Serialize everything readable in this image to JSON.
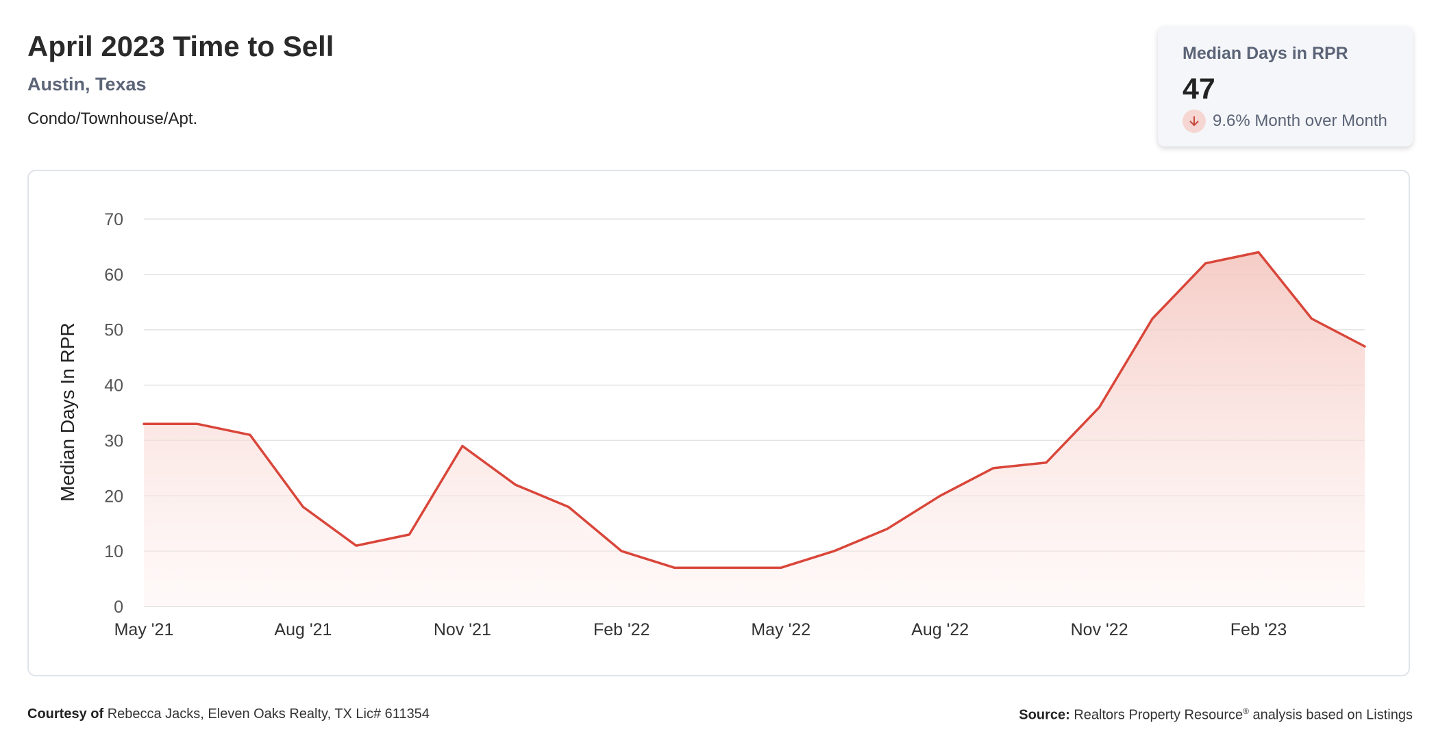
{
  "header": {
    "title": "April 2023 Time to Sell",
    "location": "Austin, Texas",
    "property_type": "Condo/Townhouse/Apt."
  },
  "stat_card": {
    "label": "Median Days in RPR",
    "value": "47",
    "change_text": "9.6% Month over Month",
    "change_direction": "down",
    "icon": "arrow-down-icon"
  },
  "footer": {
    "courtesy_label": "Courtesy of",
    "courtesy_text": "Rebecca Jacks, Eleven Oaks Realty, TX Lic# 611354",
    "source_label": "Source:",
    "source_text": "Realtors Property Resource",
    "source_mark": "®",
    "source_suffix": "analysis based on Listings"
  },
  "colors": {
    "line": "#d9463a",
    "fill_top": "#f4c3bc",
    "grid": "#e3e3e3",
    "axis_text": "#555555"
  },
  "chart_data": {
    "type": "area",
    "title": "",
    "xlabel": "",
    "ylabel": "Median Days In RPR",
    "ylim": [
      0,
      70
    ],
    "yticks": [
      0,
      10,
      20,
      30,
      40,
      50,
      60,
      70
    ],
    "grid": true,
    "x_tick_labels": [
      "May '21",
      "Aug '21",
      "Nov '21",
      "Feb '22",
      "May '22",
      "Aug '22",
      "Nov '22",
      "Feb '23"
    ],
    "x_tick_indices": [
      0,
      3,
      6,
      9,
      12,
      15,
      18,
      21
    ],
    "x": [
      "2021-05",
      "2021-06",
      "2021-07",
      "2021-08",
      "2021-09",
      "2021-10",
      "2021-11",
      "2021-12",
      "2022-01",
      "2022-02",
      "2022-03",
      "2022-04",
      "2022-05",
      "2022-06",
      "2022-07",
      "2022-08",
      "2022-09",
      "2022-10",
      "2022-11",
      "2022-12",
      "2023-01",
      "2023-02",
      "2023-03",
      "2023-04"
    ],
    "values": [
      33,
      33,
      31,
      18,
      11,
      13,
      29,
      22,
      18,
      10,
      7,
      7,
      7,
      10,
      14,
      20,
      25,
      26,
      36,
      52,
      62,
      64,
      52,
      47
    ]
  }
}
